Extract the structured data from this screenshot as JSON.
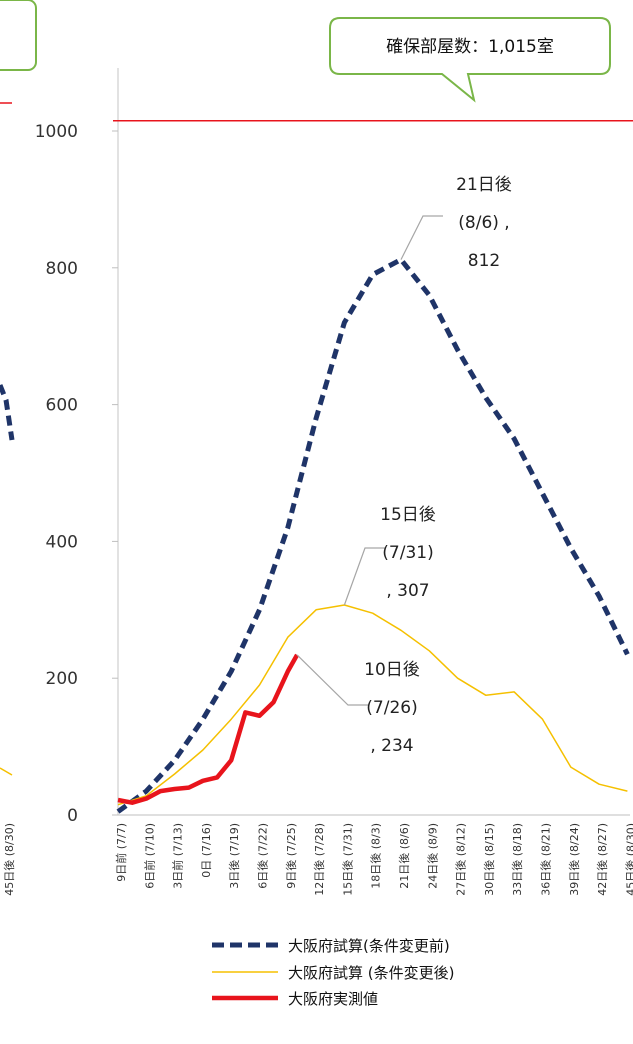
{
  "chart_data": {
    "type": "line",
    "ylim": [
      0,
      1000
    ],
    "yticks": [
      0,
      200,
      400,
      600,
      800,
      1000
    ],
    "categories": [
      "9日前 (7/7)",
      "6日前 (7/10)",
      "3日前 (7/13)",
      "0日 (7/16)",
      "3日後 (7/19)",
      "6日後 (7/22)",
      "9日後 (7/25)",
      "12日後 (7/28)",
      "15日後 (7/31)",
      "18日後 (8/3)",
      "21日後 (8/6)",
      "24日後 (8/9)",
      "27日後 (8/12)",
      "30日後 (8/15)",
      "33日後 (8/18)",
      "36日後 (8/21)",
      "39日後 (8/24)",
      "42日後 (8/27)",
      "45日後 (8/30)"
    ],
    "series": [
      {
        "name": "大阪府試算(条件変更前)",
        "color": "#1f3468",
        "style": "dashed",
        "points": [
          [
            0,
            5
          ],
          [
            1,
            35
          ],
          [
            2,
            80
          ],
          [
            3,
            140
          ],
          [
            4,
            210
          ],
          [
            5,
            300
          ],
          [
            6,
            420
          ],
          [
            7,
            580
          ],
          [
            8,
            720
          ],
          [
            9,
            790
          ],
          [
            10,
            812
          ],
          [
            11,
            760
          ],
          [
            12,
            680
          ],
          [
            13,
            610
          ],
          [
            14,
            550
          ],
          [
            15,
            470
          ],
          [
            16,
            390
          ],
          [
            17,
            320
          ],
          [
            18,
            235
          ]
        ]
      },
      {
        "name": "大阪府試算 (条件変更後)",
        "color": "#f5c000",
        "style": "solid",
        "points": [
          [
            0,
            15
          ],
          [
            1,
            28
          ],
          [
            2,
            60
          ],
          [
            3,
            95
          ],
          [
            4,
            140
          ],
          [
            5,
            190
          ],
          [
            6,
            260
          ],
          [
            7,
            300
          ],
          [
            8,
            307
          ],
          [
            9,
            295
          ],
          [
            10,
            270
          ],
          [
            11,
            240
          ],
          [
            12,
            200
          ],
          [
            13,
            175
          ],
          [
            14,
            180
          ],
          [
            15,
            140
          ],
          [
            16,
            70
          ],
          [
            17,
            45
          ],
          [
            18,
            35
          ]
        ]
      },
      {
        "name": "大阪府実測値",
        "color": "#e8141c",
        "style": "solid",
        "points": [
          [
            0,
            22
          ],
          [
            0.5,
            18
          ],
          [
            1,
            24
          ],
          [
            1.5,
            35
          ],
          [
            2,
            38
          ],
          [
            2.5,
            40
          ],
          [
            3,
            50
          ],
          [
            3.5,
            55
          ],
          [
            4,
            80
          ],
          [
            4.5,
            150
          ],
          [
            5,
            145
          ],
          [
            5.5,
            165
          ],
          [
            6,
            210
          ],
          [
            6.33,
            234
          ]
        ]
      }
    ],
    "hline": {
      "value": 1015,
      "color": "#e8141c"
    },
    "annotations": [
      {
        "lines": [
          "21日後",
          "(8/6) ,",
          "812"
        ],
        "x": 10,
        "y": 812
      },
      {
        "lines": [
          "15日後",
          "(7/31)",
          ", 307"
        ],
        "x": 8,
        "y": 307
      },
      {
        "lines": [
          "10日後",
          "(7/26)",
          ", 234"
        ],
        "x": 6.33,
        "y": 234
      }
    ],
    "callout": "確保部屋数：1,015室",
    "left_panel": {
      "x_tick": "45日後 (8/30)",
      "y_ticks": [
        "1000",
        "800",
        "600",
        "400",
        "200",
        "0"
      ]
    }
  }
}
